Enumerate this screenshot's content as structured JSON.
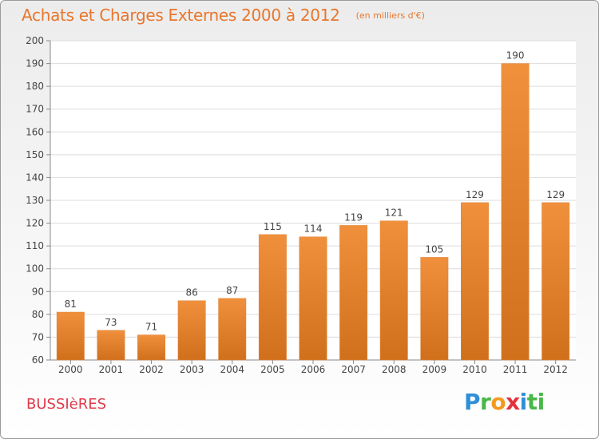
{
  "header": {
    "title": "Achats et Charges Externes 2000 à 2012",
    "unit": "(en milliers d'€)"
  },
  "footer": {
    "commune": "BUSSIèRES",
    "logo_letters": [
      "P",
      "r",
      "o",
      "x",
      "i",
      "ti"
    ]
  },
  "chart_data": {
    "type": "bar",
    "title": "Achats et Charges Externes 2000 à 2012",
    "xlabel": "",
    "ylabel": "",
    "categories": [
      "2000",
      "2001",
      "2002",
      "2003",
      "2004",
      "2005",
      "2006",
      "2007",
      "2008",
      "2009",
      "2010",
      "2011",
      "2012"
    ],
    "values": [
      81,
      73,
      71,
      86,
      87,
      115,
      114,
      119,
      121,
      105,
      129,
      190,
      129
    ],
    "ylim": [
      60,
      200
    ],
    "yticks": [
      60,
      70,
      80,
      90,
      100,
      110,
      120,
      130,
      140,
      150,
      160,
      170,
      180,
      190,
      200
    ],
    "grid": true,
    "bar_color": "#f0903c",
    "bar_color_dark": "#d0701c"
  }
}
